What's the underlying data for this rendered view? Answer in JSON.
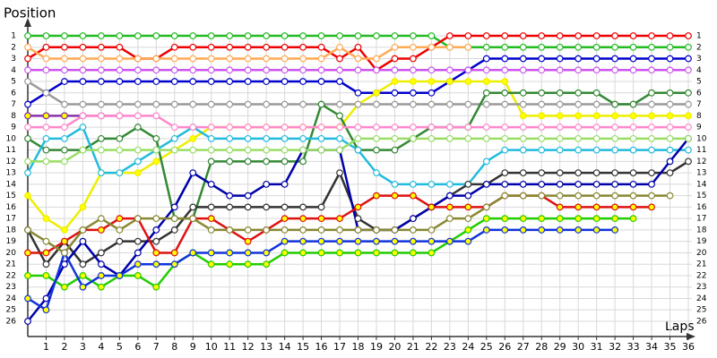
{
  "chart_data": {
    "type": "line",
    "y_label": "Position",
    "x_label": "Laps",
    "x": [
      0,
      1,
      2,
      3,
      4,
      5,
      6,
      7,
      8,
      9,
      10,
      11,
      12,
      13,
      14,
      15,
      16,
      17,
      18,
      19,
      20,
      21,
      22,
      23,
      24,
      25,
      26,
      27,
      28,
      29,
      30,
      31,
      32,
      33,
      34,
      35,
      36
    ],
    "xlim": [
      0,
      36
    ],
    "xticks": [
      1,
      2,
      3,
      4,
      5,
      6,
      7,
      8,
      9,
      10,
      11,
      12,
      13,
      14,
      15,
      16,
      17,
      18,
      19,
      20,
      21,
      22,
      23,
      24,
      25,
      26,
      27,
      28,
      29,
      30,
      31,
      32,
      33,
      34,
      35,
      36
    ],
    "ylim": [
      26,
      1
    ],
    "yticks": [
      1,
      2,
      3,
      4,
      5,
      6,
      7,
      8,
      9,
      10,
      11,
      12,
      13,
      14,
      15,
      16,
      17,
      18,
      19,
      20,
      21,
      22,
      23,
      24,
      25,
      26
    ],
    "grid": true,
    "series": [
      {
        "color": "#22bb22",
        "values": [
          1,
          1,
          1,
          1,
          1,
          1,
          1,
          1,
          1,
          1,
          1,
          1,
          1,
          1,
          1,
          1,
          1,
          1,
          1,
          1,
          1,
          1,
          1,
          2,
          2,
          2,
          2,
          2,
          2,
          2,
          2,
          2,
          2,
          2,
          2,
          2,
          2
        ]
      },
      {
        "color": "#ee0000",
        "values": [
          3,
          2,
          2,
          2,
          2,
          2,
          3,
          3,
          2,
          2,
          2,
          2,
          2,
          2,
          2,
          2,
          2,
          3,
          2,
          4,
          3,
          3,
          2,
          1,
          1,
          1,
          1,
          1,
          1,
          1,
          1,
          1,
          1,
          1,
          1,
          1,
          1
        ]
      },
      {
        "color": "#0000cc",
        "values": [
          7,
          6,
          5,
          5,
          5,
          5,
          5,
          5,
          5,
          5,
          5,
          5,
          5,
          5,
          5,
          5,
          5,
          5,
          6,
          6,
          6,
          6,
          6,
          5,
          4,
          3,
          3,
          3,
          3,
          3,
          3,
          3,
          3,
          3,
          3,
          3,
          3
        ]
      },
      {
        "color": "#cc55ee",
        "values": [
          4,
          4,
          4,
          4,
          4,
          4,
          4,
          4,
          4,
          4,
          4,
          4,
          4,
          4,
          4,
          4,
          4,
          4,
          4,
          4,
          4,
          4,
          4,
          4,
          4,
          4,
          4,
          4,
          4,
          4,
          4,
          4,
          4,
          4,
          4,
          4,
          4
        ]
      },
      {
        "color": "#ffaa55",
        "values": [
          2,
          3,
          3,
          3,
          3,
          3,
          3,
          3,
          3,
          3,
          3,
          3,
          3,
          3,
          3,
          3,
          3,
          2,
          3,
          3,
          2,
          2,
          2,
          2,
          2,
          null,
          null,
          null,
          null,
          null,
          null,
          null,
          null,
          null,
          null,
          null,
          null
        ]
      },
      {
        "color": "#eeee00",
        "marker_fill": "#ffff00",
        "values": [
          15,
          17,
          18,
          16,
          13,
          13,
          13,
          12,
          11,
          10,
          9,
          9,
          9,
          9,
          9,
          9,
          9,
          9,
          7,
          6,
          5,
          5,
          5,
          5,
          5,
          5,
          5,
          8,
          8,
          8,
          8,
          8,
          8,
          8,
          8,
          8,
          8
        ]
      },
      {
        "color": "#999999",
        "values": [
          5,
          6,
          7,
          7,
          7,
          7,
          7,
          7,
          7,
          7,
          7,
          7,
          7,
          7,
          7,
          7,
          7,
          7,
          7,
          7,
          7,
          7,
          7,
          7,
          7,
          7,
          7,
          7,
          7,
          7,
          7,
          7,
          7,
          7,
          7,
          7,
          7
        ]
      },
      {
        "color": "#8833aa",
        "marker_fill": "#ffff00",
        "values": [
          8,
          8,
          8,
          8,
          8,
          8,
          null,
          null,
          null,
          null,
          null,
          null,
          null,
          null,
          null,
          null,
          null,
          null,
          null,
          null,
          null,
          null,
          null,
          null,
          null,
          null,
          null,
          null,
          null,
          null,
          null,
          null,
          null,
          null,
          null,
          null,
          null
        ]
      },
      {
        "color": "#338833",
        "values": [
          10,
          11,
          11,
          11,
          10,
          10,
          9,
          10,
          17,
          17,
          12,
          12,
          12,
          12,
          12,
          12,
          7,
          8,
          11,
          11,
          11,
          10,
          9,
          9,
          9,
          6,
          6,
          6,
          6,
          6,
          6,
          6,
          7,
          7,
          6,
          6,
          6
        ]
      },
      {
        "color": "#22bbdd",
        "values": [
          13,
          10,
          10,
          9,
          13,
          13,
          12,
          11,
          10,
          9,
          10,
          10,
          10,
          10,
          10,
          10,
          10,
          10,
          11,
          13,
          14,
          14,
          14,
          14,
          14,
          12,
          11,
          11,
          11,
          11,
          11,
          11,
          11,
          11,
          11,
          11,
          11
        ]
      },
      {
        "color": "#333333",
        "values": [
          18,
          21,
          19,
          21,
          20,
          19,
          19,
          19,
          18,
          16,
          16,
          16,
          16,
          16,
          16,
          16,
          16,
          13,
          17,
          18,
          18,
          17,
          16,
          15,
          14,
          14,
          13,
          13,
          13,
          13,
          13,
          13,
          13,
          13,
          13,
          13,
          12
        ]
      },
      {
        "color": "#0000aa",
        "values": [
          26,
          24,
          21,
          19,
          21,
          22,
          20,
          18,
          16,
          13,
          14,
          15,
          15,
          14,
          14,
          11,
          11,
          11,
          18,
          18,
          18,
          17,
          16,
          15,
          15,
          14,
          14,
          14,
          14,
          14,
          14,
          14,
          14,
          14,
          14,
          12,
          10
        ]
      },
      {
        "color": "#dd1111",
        "marker_fill": "#ffff00",
        "values": [
          20,
          20,
          19,
          18,
          18,
          17,
          17,
          20,
          20,
          17,
          17,
          18,
          19,
          18,
          17,
          17,
          17,
          17,
          16,
          15,
          15,
          15,
          16,
          16,
          16,
          16,
          15,
          15,
          15,
          16,
          16,
          16,
          16,
          16,
          16,
          null,
          null
        ]
      },
      {
        "color": "#22cc00",
        "marker_fill": "#ffff00",
        "values": [
          22,
          22,
          23,
          22,
          23,
          22,
          22,
          23,
          21,
          20,
          21,
          21,
          21,
          21,
          20,
          20,
          20,
          20,
          20,
          20,
          20,
          20,
          20,
          19,
          18,
          17,
          17,
          17,
          17,
          17,
          17,
          17,
          17,
          17,
          null,
          null,
          null
        ]
      },
      {
        "color": "#1133dd",
        "marker_fill": "#ffff00",
        "values": [
          24,
          25,
          20,
          23,
          22,
          22,
          21,
          21,
          21,
          20,
          20,
          20,
          20,
          20,
          19,
          19,
          19,
          19,
          19,
          19,
          19,
          19,
          19,
          19,
          19,
          18,
          18,
          18,
          18,
          18,
          18,
          18,
          18,
          null,
          null,
          null,
          null
        ]
      },
      {
        "color": "#888833",
        "values": [
          18,
          19,
          20,
          18,
          17,
          18,
          17,
          17,
          17,
          17,
          18,
          18,
          18,
          18,
          18,
          18,
          18,
          18,
          18,
          18,
          18,
          18,
          18,
          17,
          17,
          16,
          15,
          15,
          15,
          15,
          15,
          15,
          15,
          15,
          15,
          15,
          null
        ]
      },
      {
        "color": "#ff88cc",
        "values": [
          9,
          9,
          9,
          8,
          8,
          8,
          8,
          8,
          9,
          9,
          9,
          9,
          9,
          9,
          9,
          9,
          9,
          9,
          9,
          9,
          9,
          9,
          9,
          9,
          9,
          9,
          9,
          9,
          9,
          9,
          9,
          9,
          9,
          9,
          9,
          9,
          9
        ]
      },
      {
        "color": "#99dd66",
        "values": [
          12,
          12,
          12,
          11,
          11,
          11,
          11,
          11,
          11,
          11,
          11,
          11,
          11,
          11,
          11,
          11,
          11,
          11,
          10,
          10,
          10,
          10,
          10,
          10,
          10,
          10,
          10,
          10,
          10,
          10,
          10,
          10,
          10,
          10,
          10,
          10,
          10
        ]
      }
    ]
  }
}
